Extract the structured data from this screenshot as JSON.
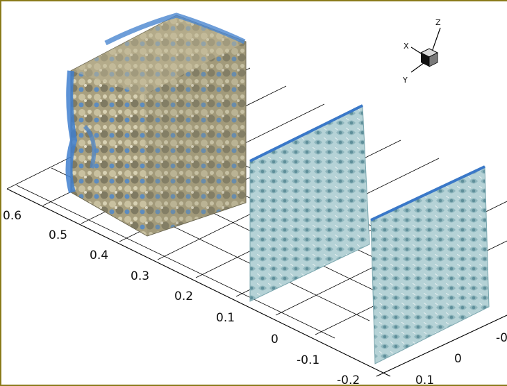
{
  "figure": {
    "axis_primary_ticks": [
      "0.6",
      "0.5",
      "0.4",
      "0.3",
      "0.2",
      "0.1",
      "0",
      "-0.1",
      "-0.2"
    ],
    "axis_secondary_ticks": [
      "0.1",
      "0",
      "-0"
    ],
    "triad": {
      "x": "X",
      "y": "Y",
      "z": "Z"
    },
    "colors": {
      "frame": "#8a7a1a",
      "isosurface_tan": "#b8ae88",
      "isosurface_blue": "#4a86cf",
      "slab_teal": "#9fc3c8",
      "slab_edge_blue": "#3a78c8"
    }
  }
}
